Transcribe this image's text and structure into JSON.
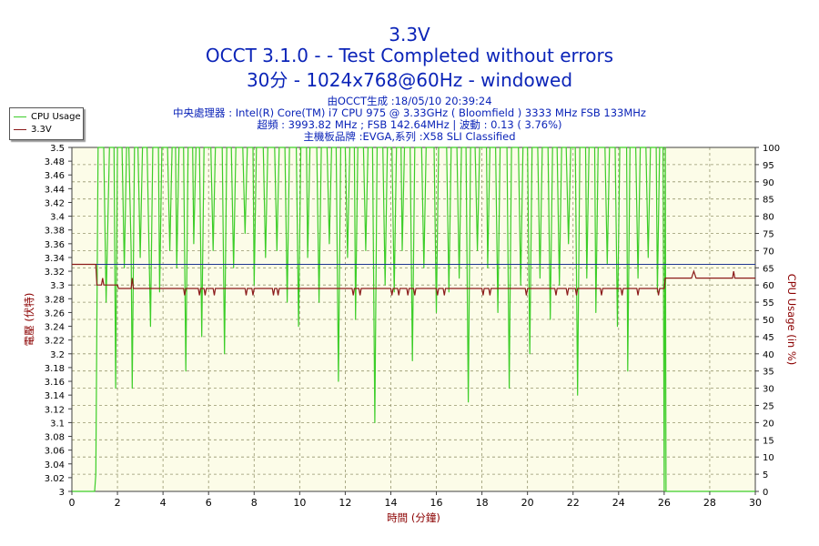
{
  "title": "3.3V",
  "subtitle": "OCCT 3.1.0 -  - Test Completed without errors",
  "subtitle2": "30分 - 1024x768@60Hz - windowed",
  "info": [
    "由OCCT生成 :18/05/10 20:39:24",
    "中央處理器 : Intel(R) Core(TM) i7 CPU 975 @ 3.33GHz ( Bloomfield ) 3333 MHz FSB 133MHz",
    "超頻 : 3993.82 MHz ; FSB 142.64MHz | 波動 : 0.13 ( 3.76%)",
    "主機板品牌 :EVGA,系列 :X58 SLI Classified"
  ],
  "colors": {
    "plot_bg": "#fcfce8",
    "grid": "#96966e",
    "cpu": "#3ccd28",
    "voltage": "#8b1a1a",
    "reference": "#1f3690",
    "axis_text": "#000000",
    "title": "#0b24b8",
    "axis_label_red": "#8b0000"
  },
  "chart_data": {
    "type": "line",
    "xlabel": "時間 (分鐘)",
    "ylabel_left": "電壓 (伏特)",
    "ylabel_right": "CPU Usage (in %)",
    "xlim": [
      0,
      30
    ],
    "ylim_left": [
      3.0,
      3.5
    ],
    "ylim_right": [
      0,
      100
    ],
    "x_ticks": [
      0,
      2,
      4,
      6,
      8,
      10,
      12,
      14,
      16,
      18,
      20,
      22,
      24,
      26,
      28,
      30
    ],
    "y_left_ticks": [
      "3",
      "3.02",
      "3.04",
      "3.06",
      "3.08",
      "3.1",
      "3.12",
      "3.14",
      "3.16",
      "3.18",
      "3.2",
      "3.22",
      "3.24",
      "3.26",
      "3.28",
      "3.3",
      "3.32",
      "3.34",
      "3.36",
      "3.38",
      "3.4",
      "3.42",
      "3.44",
      "3.46",
      "3.48",
      "3.5"
    ],
    "y_right_ticks": [
      "0",
      "5",
      "10",
      "15",
      "20",
      "25",
      "30",
      "35",
      "40",
      "45",
      "50",
      "55",
      "60",
      "65",
      "70",
      "75",
      "80",
      "85",
      "90",
      "95",
      "100"
    ],
    "grid": true,
    "legend_position": "top-left, outside plot",
    "reference_voltage": 3.33,
    "series": [
      {
        "name": "CPU Usage",
        "axis": "right",
        "points": [
          [
            0,
            0
          ],
          [
            1,
            0
          ],
          [
            1.05,
            5
          ],
          [
            1.15,
            100
          ],
          [
            1.4,
            100
          ],
          [
            1.5,
            55
          ],
          [
            1.65,
            100
          ],
          [
            1.85,
            100
          ],
          [
            1.92,
            30
          ],
          [
            2.0,
            100
          ],
          [
            2.2,
            100
          ],
          [
            2.3,
            65
          ],
          [
            2.4,
            100
          ],
          [
            2.5,
            100
          ],
          [
            2.6,
            70
          ],
          [
            2.65,
            30
          ],
          [
            2.75,
            100
          ],
          [
            2.9,
            100
          ],
          [
            3.0,
            68
          ],
          [
            3.1,
            100
          ],
          [
            3.3,
            100
          ],
          [
            3.45,
            48
          ],
          [
            3.55,
            100
          ],
          [
            3.8,
            100
          ],
          [
            3.85,
            58
          ],
          [
            3.95,
            100
          ],
          [
            4.2,
            100
          ],
          [
            4.3,
            70
          ],
          [
            4.4,
            100
          ],
          [
            4.55,
            100
          ],
          [
            4.6,
            65
          ],
          [
            4.7,
            100
          ],
          [
            4.9,
            100
          ],
          [
            5.0,
            35
          ],
          [
            5.1,
            100
          ],
          [
            5.3,
            100
          ],
          [
            5.35,
            72
          ],
          [
            5.45,
            100
          ],
          [
            5.6,
            100
          ],
          [
            5.7,
            45
          ],
          [
            5.8,
            100
          ],
          [
            6.1,
            100
          ],
          [
            6.2,
            70
          ],
          [
            6.3,
            100
          ],
          [
            6.6,
            100
          ],
          [
            6.7,
            40
          ],
          [
            6.8,
            100
          ],
          [
            7.0,
            100
          ],
          [
            7.1,
            65
          ],
          [
            7.2,
            100
          ],
          [
            7.5,
            100
          ],
          [
            7.6,
            75
          ],
          [
            7.7,
            100
          ],
          [
            7.95,
            100
          ],
          [
            8.0,
            60
          ],
          [
            8.1,
            100
          ],
          [
            8.4,
            100
          ],
          [
            8.5,
            68
          ],
          [
            8.6,
            100
          ],
          [
            8.9,
            100
          ],
          [
            9.0,
            70
          ],
          [
            9.1,
            100
          ],
          [
            9.35,
            100
          ],
          [
            9.45,
            55
          ],
          [
            9.55,
            100
          ],
          [
            9.85,
            100
          ],
          [
            9.95,
            48
          ],
          [
            10.05,
            100
          ],
          [
            10.3,
            100
          ],
          [
            10.35,
            68
          ],
          [
            10.45,
            100
          ],
          [
            10.75,
            100
          ],
          [
            10.85,
            55
          ],
          [
            10.95,
            100
          ],
          [
            11.2,
            100
          ],
          [
            11.3,
            72
          ],
          [
            11.4,
            100
          ],
          [
            11.6,
            100
          ],
          [
            11.7,
            32
          ],
          [
            11.8,
            100
          ],
          [
            12.0,
            100
          ],
          [
            12.1,
            68
          ],
          [
            12.2,
            100
          ],
          [
            12.4,
            100
          ],
          [
            12.45,
            50
          ],
          [
            12.55,
            100
          ],
          [
            12.8,
            100
          ],
          [
            12.9,
            70
          ],
          [
            13.0,
            100
          ],
          [
            13.2,
            100
          ],
          [
            13.3,
            20
          ],
          [
            13.4,
            100
          ],
          [
            13.65,
            100
          ],
          [
            13.75,
            60
          ],
          [
            13.85,
            100
          ],
          [
            14.05,
            100
          ],
          [
            14.15,
            58
          ],
          [
            14.25,
            100
          ],
          [
            14.45,
            100
          ],
          [
            14.5,
            70
          ],
          [
            14.6,
            100
          ],
          [
            14.85,
            100
          ],
          [
            14.95,
            38
          ],
          [
            15.05,
            100
          ],
          [
            15.35,
            100
          ],
          [
            15.45,
            65
          ],
          [
            15.55,
            100
          ],
          [
            15.9,
            100
          ],
          [
            16.0,
            52
          ],
          [
            16.1,
            100
          ],
          [
            16.45,
            100
          ],
          [
            16.55,
            58
          ],
          [
            16.65,
            100
          ],
          [
            16.9,
            100
          ],
          [
            17.0,
            62
          ],
          [
            17.1,
            100
          ],
          [
            17.3,
            100
          ],
          [
            17.4,
            26
          ],
          [
            17.5,
            100
          ],
          [
            17.7,
            100
          ],
          [
            17.8,
            70
          ],
          [
            17.9,
            100
          ],
          [
            18.2,
            100
          ],
          [
            18.25,
            65
          ],
          [
            18.35,
            100
          ],
          [
            18.6,
            100
          ],
          [
            18.7,
            52
          ],
          [
            18.8,
            100
          ],
          [
            19.1,
            100
          ],
          [
            19.2,
            30
          ],
          [
            19.3,
            100
          ],
          [
            19.6,
            100
          ],
          [
            19.7,
            60
          ],
          [
            19.8,
            100
          ],
          [
            20.0,
            100
          ],
          [
            20.1,
            40
          ],
          [
            20.2,
            100
          ],
          [
            20.45,
            100
          ],
          [
            20.55,
            62
          ],
          [
            20.65,
            100
          ],
          [
            20.9,
            100
          ],
          [
            21.0,
            50
          ],
          [
            21.1,
            100
          ],
          [
            21.3,
            100
          ],
          [
            21.4,
            60
          ],
          [
            21.5,
            100
          ],
          [
            21.7,
            100
          ],
          [
            21.8,
            72
          ],
          [
            21.9,
            100
          ],
          [
            22.1,
            100
          ],
          [
            22.2,
            28
          ],
          [
            22.3,
            100
          ],
          [
            22.55,
            100
          ],
          [
            22.6,
            62
          ],
          [
            22.7,
            100
          ],
          [
            22.95,
            100
          ],
          [
            23.0,
            52
          ],
          [
            23.1,
            100
          ],
          [
            23.4,
            100
          ],
          [
            23.5,
            66
          ],
          [
            23.6,
            100
          ],
          [
            23.85,
            100
          ],
          [
            23.95,
            48
          ],
          [
            24.05,
            100
          ],
          [
            24.35,
            100
          ],
          [
            24.4,
            35
          ],
          [
            24.5,
            100
          ],
          [
            24.75,
            100
          ],
          [
            24.85,
            62
          ],
          [
            24.95,
            100
          ],
          [
            25.2,
            100
          ],
          [
            25.3,
            68
          ],
          [
            25.4,
            100
          ],
          [
            25.65,
            100
          ],
          [
            25.7,
            58
          ],
          [
            25.8,
            100
          ],
          [
            25.95,
            100
          ],
          [
            26.0,
            0
          ],
          [
            26.05,
            100
          ],
          [
            26.08,
            0
          ],
          [
            30,
            0
          ]
        ]
      },
      {
        "name": "3.3V",
        "axis": "left",
        "points": [
          [
            0,
            3.33
          ],
          [
            1.05,
            3.33
          ],
          [
            1.1,
            3.3
          ],
          [
            1.3,
            3.3
          ],
          [
            1.35,
            3.31
          ],
          [
            1.4,
            3.3
          ],
          [
            2.0,
            3.3
          ],
          [
            2.05,
            3.295
          ],
          [
            2.6,
            3.295
          ],
          [
            2.65,
            3.31
          ],
          [
            2.7,
            3.295
          ],
          [
            4.9,
            3.295
          ],
          [
            4.95,
            3.285
          ],
          [
            5.0,
            3.295
          ],
          [
            5.55,
            3.295
          ],
          [
            5.6,
            3.285
          ],
          [
            5.65,
            3.295
          ],
          [
            5.8,
            3.295
          ],
          [
            5.85,
            3.285
          ],
          [
            5.9,
            3.295
          ],
          [
            6.2,
            3.295
          ],
          [
            6.25,
            3.285
          ],
          [
            6.3,
            3.295
          ],
          [
            7.6,
            3.295
          ],
          [
            7.65,
            3.285
          ],
          [
            7.7,
            3.295
          ],
          [
            7.9,
            3.295
          ],
          [
            7.95,
            3.285
          ],
          [
            8.0,
            3.295
          ],
          [
            8.8,
            3.295
          ],
          [
            8.85,
            3.285
          ],
          [
            8.9,
            3.295
          ],
          [
            9.0,
            3.295
          ],
          [
            9.05,
            3.285
          ],
          [
            9.1,
            3.295
          ],
          [
            12.3,
            3.295
          ],
          [
            12.35,
            3.285
          ],
          [
            12.4,
            3.295
          ],
          [
            12.6,
            3.295
          ],
          [
            12.65,
            3.285
          ],
          [
            12.7,
            3.295
          ],
          [
            14.0,
            3.295
          ],
          [
            14.05,
            3.285
          ],
          [
            14.1,
            3.295
          ],
          [
            14.3,
            3.295
          ],
          [
            14.35,
            3.285
          ],
          [
            14.4,
            3.295
          ],
          [
            14.7,
            3.295
          ],
          [
            14.75,
            3.285
          ],
          [
            14.8,
            3.295
          ],
          [
            15.0,
            3.295
          ],
          [
            15.05,
            3.285
          ],
          [
            15.1,
            3.295
          ],
          [
            16.0,
            3.295
          ],
          [
            16.05,
            3.285
          ],
          [
            16.1,
            3.295
          ],
          [
            16.3,
            3.295
          ],
          [
            16.35,
            3.285
          ],
          [
            16.4,
            3.295
          ],
          [
            18.0,
            3.295
          ],
          [
            18.05,
            3.285
          ],
          [
            18.1,
            3.295
          ],
          [
            18.3,
            3.295
          ],
          [
            18.35,
            3.285
          ],
          [
            18.4,
            3.295
          ],
          [
            19.9,
            3.295
          ],
          [
            19.95,
            3.285
          ],
          [
            20.0,
            3.295
          ],
          [
            21.2,
            3.295
          ],
          [
            21.25,
            3.285
          ],
          [
            21.3,
            3.295
          ],
          [
            21.7,
            3.295
          ],
          [
            21.75,
            3.285
          ],
          [
            21.8,
            3.295
          ],
          [
            22.1,
            3.295
          ],
          [
            22.15,
            3.285
          ],
          [
            22.2,
            3.295
          ],
          [
            23.2,
            3.295
          ],
          [
            23.25,
            3.285
          ],
          [
            23.3,
            3.295
          ],
          [
            24.1,
            3.295
          ],
          [
            24.15,
            3.285
          ],
          [
            24.2,
            3.295
          ],
          [
            24.8,
            3.295
          ],
          [
            24.85,
            3.285
          ],
          [
            24.9,
            3.295
          ],
          [
            25.7,
            3.295
          ],
          [
            25.75,
            3.285
          ],
          [
            25.8,
            3.295
          ],
          [
            26.0,
            3.295
          ],
          [
            26.05,
            3.31
          ],
          [
            27.2,
            3.31
          ],
          [
            27.3,
            3.32
          ],
          [
            27.4,
            3.31
          ],
          [
            29.0,
            3.31
          ],
          [
            29.05,
            3.32
          ],
          [
            29.1,
            3.31
          ],
          [
            30,
            3.31
          ]
        ]
      }
    ]
  }
}
